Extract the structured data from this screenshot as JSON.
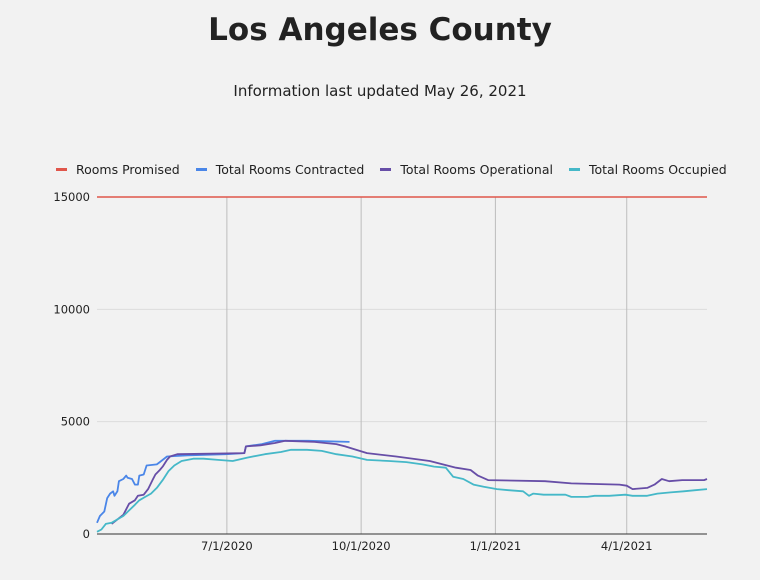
{
  "title": "Los Angeles County",
  "subtitle": "Information last updated May 26, 2021",
  "chart_data": {
    "type": "line",
    "title": "Los Angeles County",
    "subtitle": "Information last updated May 26, 2021",
    "xlabel": "",
    "ylabel": "",
    "x_range": [
      "2020-04-03",
      "2021-05-26"
    ],
    "ylim": [
      0,
      15000
    ],
    "y_ticks": [
      0,
      5000,
      10000,
      15000
    ],
    "x_ticks": [
      {
        "date": "2020-07-01",
        "label": "7/1/2020"
      },
      {
        "date": "2020-10-01",
        "label": "10/1/2020"
      },
      {
        "date": "2021-01-01",
        "label": "1/1/2021"
      },
      {
        "date": "2021-04-01",
        "label": "4/1/2021"
      }
    ],
    "grid": "vertical lines at x ticks, horizontal lines at y ticks",
    "legend_position": "top-left",
    "series": [
      {
        "name": "Rooms Promised",
        "color": "#e0564b",
        "points": [
          [
            "2020-04-03",
            15000
          ],
          [
            "2021-05-26",
            15000
          ]
        ]
      },
      {
        "name": "Total Rooms Contracted",
        "color": "#4a86e8",
        "points": [
          [
            "2020-04-03",
            500
          ],
          [
            "2020-04-05",
            800
          ],
          [
            "2020-04-08",
            1000
          ],
          [
            "2020-04-10",
            1600
          ],
          [
            "2020-04-12",
            1800
          ],
          [
            "2020-04-14",
            1900
          ],
          [
            "2020-04-15",
            1700
          ],
          [
            "2020-04-17",
            1900
          ],
          [
            "2020-04-18",
            2350
          ],
          [
            "2020-04-21",
            2450
          ],
          [
            "2020-04-23",
            2600
          ],
          [
            "2020-04-24",
            2500
          ],
          [
            "2020-04-27",
            2450
          ],
          [
            "2020-04-29",
            2200
          ],
          [
            "2020-05-01",
            2200
          ],
          [
            "2020-05-02",
            2600
          ],
          [
            "2020-05-05",
            2650
          ],
          [
            "2020-05-07",
            3050
          ],
          [
            "2020-05-14",
            3100
          ],
          [
            "2020-05-16",
            3200
          ],
          [
            "2020-05-21",
            3450
          ],
          [
            "2020-06-04",
            3500
          ],
          [
            "2020-06-30",
            3550
          ],
          [
            "2020-07-13",
            3600
          ],
          [
            "2020-07-14",
            3900
          ],
          [
            "2020-07-25",
            4000
          ],
          [
            "2020-08-03",
            4150
          ],
          [
            "2020-08-26",
            4150
          ],
          [
            "2020-09-23",
            4100
          ]
        ]
      },
      {
        "name": "Total Rooms Operational",
        "color": "#674ea7",
        "points": [
          [
            "2020-04-13",
            450
          ],
          [
            "2020-04-17",
            650
          ],
          [
            "2020-04-21",
            850
          ],
          [
            "2020-04-23",
            1100
          ],
          [
            "2020-04-25",
            1350
          ],
          [
            "2020-04-29",
            1500
          ],
          [
            "2020-05-01",
            1700
          ],
          [
            "2020-05-05",
            1750
          ],
          [
            "2020-05-08",
            2000
          ],
          [
            "2020-05-11",
            2400
          ],
          [
            "2020-05-13",
            2650
          ],
          [
            "2020-05-16",
            2850
          ],
          [
            "2020-05-18",
            3000
          ],
          [
            "2020-05-21",
            3300
          ],
          [
            "2020-05-23",
            3450
          ],
          [
            "2020-05-28",
            3550
          ],
          [
            "2020-07-13",
            3600
          ],
          [
            "2020-07-14",
            3900
          ],
          [
            "2020-07-24",
            3950
          ],
          [
            "2020-08-03",
            4050
          ],
          [
            "2020-08-10",
            4150
          ],
          [
            "2020-08-30",
            4100
          ],
          [
            "2020-09-14",
            4000
          ],
          [
            "2020-09-20",
            3900
          ],
          [
            "2020-09-25",
            3800
          ],
          [
            "2020-10-05",
            3600
          ],
          [
            "2020-10-25",
            3450
          ],
          [
            "2020-11-17",
            3250
          ],
          [
            "2020-12-05",
            2950
          ],
          [
            "2020-12-15",
            2850
          ],
          [
            "2020-12-20",
            2600
          ],
          [
            "2020-12-27",
            2400
          ],
          [
            "2021-02-04",
            2350
          ],
          [
            "2021-02-22",
            2250
          ],
          [
            "2021-03-27",
            2200
          ],
          [
            "2021-04-01",
            2150
          ],
          [
            "2021-04-05",
            2000
          ],
          [
            "2021-04-15",
            2050
          ],
          [
            "2021-04-20",
            2200
          ],
          [
            "2021-04-25",
            2450
          ],
          [
            "2021-04-30",
            2350
          ],
          [
            "2021-05-09",
            2400
          ],
          [
            "2021-05-24",
            2400
          ],
          [
            "2021-05-26",
            2450
          ]
        ]
      },
      {
        "name": "Total Rooms Occupied",
        "color": "#45b8c8",
        "points": [
          [
            "2020-04-03",
            100
          ],
          [
            "2020-04-06",
            200
          ],
          [
            "2020-04-09",
            450
          ],
          [
            "2020-04-13",
            500
          ],
          [
            "2020-04-17",
            650
          ],
          [
            "2020-04-21",
            800
          ],
          [
            "2020-04-25",
            1050
          ],
          [
            "2020-04-29",
            1300
          ],
          [
            "2020-05-02",
            1500
          ],
          [
            "2020-05-06",
            1650
          ],
          [
            "2020-05-10",
            1800
          ],
          [
            "2020-05-14",
            2050
          ],
          [
            "2020-05-18",
            2400
          ],
          [
            "2020-05-22",
            2800
          ],
          [
            "2020-05-26",
            3050
          ],
          [
            "2020-05-31",
            3250
          ],
          [
            "2020-06-08",
            3350
          ],
          [
            "2020-06-15",
            3350
          ],
          [
            "2020-06-25",
            3300
          ],
          [
            "2020-07-05",
            3250
          ],
          [
            "2020-07-15",
            3400
          ],
          [
            "2020-07-27",
            3550
          ],
          [
            "2020-08-07",
            3650
          ],
          [
            "2020-08-14",
            3750
          ],
          [
            "2020-08-25",
            3750
          ],
          [
            "2020-09-04",
            3700
          ],
          [
            "2020-09-14",
            3550
          ],
          [
            "2020-09-25",
            3450
          ],
          [
            "2020-10-05",
            3300
          ],
          [
            "2020-10-20",
            3250
          ],
          [
            "2020-11-01",
            3200
          ],
          [
            "2020-11-12",
            3100
          ],
          [
            "2020-11-20",
            3000
          ],
          [
            "2020-11-28",
            2950
          ],
          [
            "2020-12-03",
            2550
          ],
          [
            "2020-12-10",
            2450
          ],
          [
            "2020-12-17",
            2200
          ],
          [
            "2020-12-24",
            2100
          ],
          [
            "2021-01-02",
            2000
          ],
          [
            "2021-01-10",
            1950
          ],
          [
            "2021-01-20",
            1900
          ],
          [
            "2021-01-24",
            1700
          ],
          [
            "2021-01-27",
            1800
          ],
          [
            "2021-02-03",
            1750
          ],
          [
            "2021-02-18",
            1750
          ],
          [
            "2021-02-22",
            1650
          ],
          [
            "2021-03-05",
            1650
          ],
          [
            "2021-03-10",
            1700
          ],
          [
            "2021-03-20",
            1700
          ],
          [
            "2021-03-31",
            1750
          ],
          [
            "2021-04-05",
            1700
          ],
          [
            "2021-04-15",
            1700
          ],
          [
            "2021-04-22",
            1800
          ],
          [
            "2021-05-01",
            1850
          ],
          [
            "2021-05-10",
            1900
          ],
          [
            "2021-05-18",
            1950
          ],
          [
            "2021-05-26",
            2000
          ]
        ]
      }
    ]
  }
}
